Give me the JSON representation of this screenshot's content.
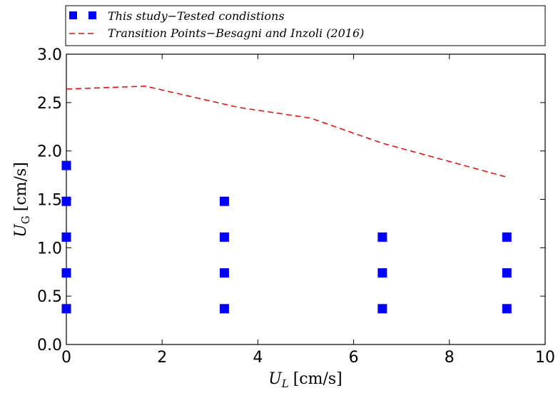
{
  "chart_data": {
    "type": "scatter",
    "xlabel_symbol": "U",
    "xlabel_subscript": "L",
    "xlabel_unit": "[cm/s]",
    "ylabel_symbol": "U",
    "ylabel_subscript": "G",
    "ylabel_unit": "[cm/s]",
    "xlim": [
      0,
      10
    ],
    "ylim": [
      0,
      3.0
    ],
    "x_ticks": [
      0,
      2,
      4,
      6,
      8,
      10
    ],
    "y_ticks": [
      0.0,
      0.5,
      1.0,
      1.5,
      2.0,
      2.5,
      3.0
    ],
    "x_tick_labels": [
      "0",
      "2",
      "4",
      "6",
      "8",
      "10"
    ],
    "y_tick_labels": [
      "0.0",
      "0.5",
      "1.0",
      "1.5",
      "2.0",
      "2.5",
      "3.0"
    ],
    "grid": false,
    "legend_position": "top",
    "series": [
      {
        "name": "This study−Tested condistions",
        "type": "scatter",
        "color": "#0000ff",
        "marker": "square",
        "points": [
          [
            0,
            0.37
          ],
          [
            0,
            0.74
          ],
          [
            0,
            1.11
          ],
          [
            0,
            1.48
          ],
          [
            0,
            1.85
          ],
          [
            3.3,
            0.37
          ],
          [
            3.3,
            0.74
          ],
          [
            3.3,
            1.11
          ],
          [
            3.3,
            1.48
          ],
          [
            6.6,
            0.37
          ],
          [
            6.6,
            0.74
          ],
          [
            6.6,
            1.11
          ],
          [
            9.2,
            0.37
          ],
          [
            9.2,
            0.74
          ],
          [
            9.2,
            1.11
          ]
        ]
      },
      {
        "name": "Transition Points−Besagni and Inzoli (2016)",
        "type": "line",
        "color": "#ff0000",
        "dash": "dashed",
        "points": [
          [
            0,
            2.64
          ],
          [
            1.65,
            2.67
          ],
          [
            3.6,
            2.45
          ],
          [
            5.1,
            2.34
          ],
          [
            6.6,
            2.08
          ],
          [
            9.2,
            1.73
          ]
        ]
      }
    ]
  }
}
